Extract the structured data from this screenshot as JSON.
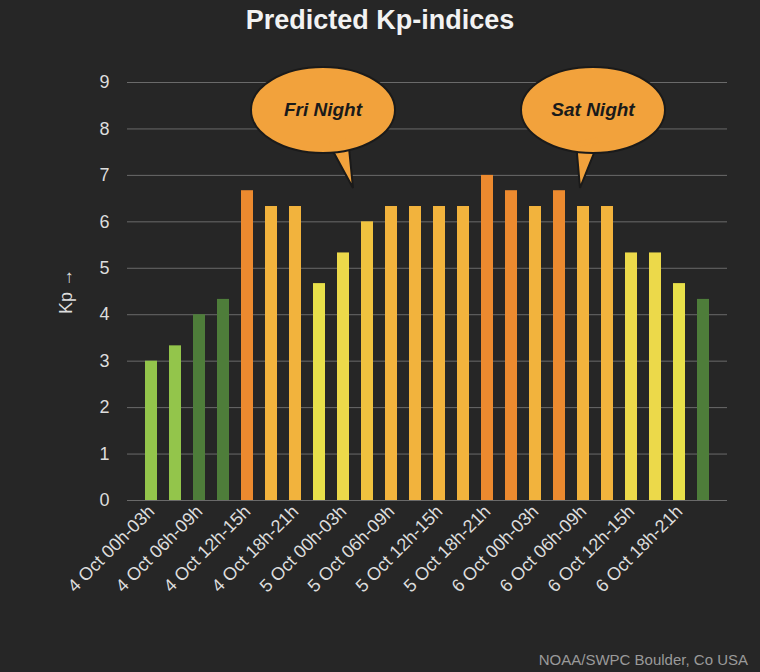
{
  "chart_data": {
    "type": "bar",
    "title": "Predicted Kp-indices",
    "y_label": "Kp",
    "categories": [
      "4 Oct 00h-03h",
      null,
      "4 Oct 06h-09h",
      null,
      "4 Oct 12h-15h",
      null,
      "4 Oct 18h-21h",
      null,
      "5 Oct 00h-03h",
      null,
      "5 Oct 06h-09h",
      null,
      "5 Oct 12h-15h",
      null,
      "5 Oct 18h-21h",
      null,
      "6 Oct 00h-03h",
      null,
      "6 Oct 06h-09h",
      null,
      "6 Oct 12h-15h",
      null,
      "6 Oct 18h-21h",
      null
    ],
    "values": [
      3.0,
      3.33,
      4.0,
      4.33,
      6.67,
      6.33,
      6.33,
      4.67,
      5.33,
      6.0,
      6.33,
      6.33,
      6.33,
      6.33,
      7.0,
      6.67,
      6.33,
      6.67,
      6.33,
      6.33,
      5.33,
      5.33,
      4.67,
      4.33
    ],
    "colors": [
      "#93c54b",
      "#93c54b",
      "#4e7d3a",
      "#4e7d3a",
      "#ec8a2f",
      "#f2b33d",
      "#f2b33d",
      "#e8e04a",
      "#ecd94a",
      "#f0c23f",
      "#f2b33d",
      "#f2b33d",
      "#f2b33d",
      "#f2b33d",
      "#ec8a2f",
      "#ec8a2f",
      "#f2b33d",
      "#ec8a2f",
      "#f2b33d",
      "#f2b33d",
      "#ecd94a",
      "#ecd94a",
      "#e8e04a",
      "#4e7d3a"
    ],
    "ylim": [
      0,
      9
    ],
    "yticks": [
      0,
      1,
      2,
      3,
      4,
      5,
      6,
      7,
      8,
      9
    ],
    "grid": true,
    "annotations": [
      "Fri Night",
      "Sat Night"
    ],
    "source": "NOAA/SWPC Boulder, Co USA"
  }
}
